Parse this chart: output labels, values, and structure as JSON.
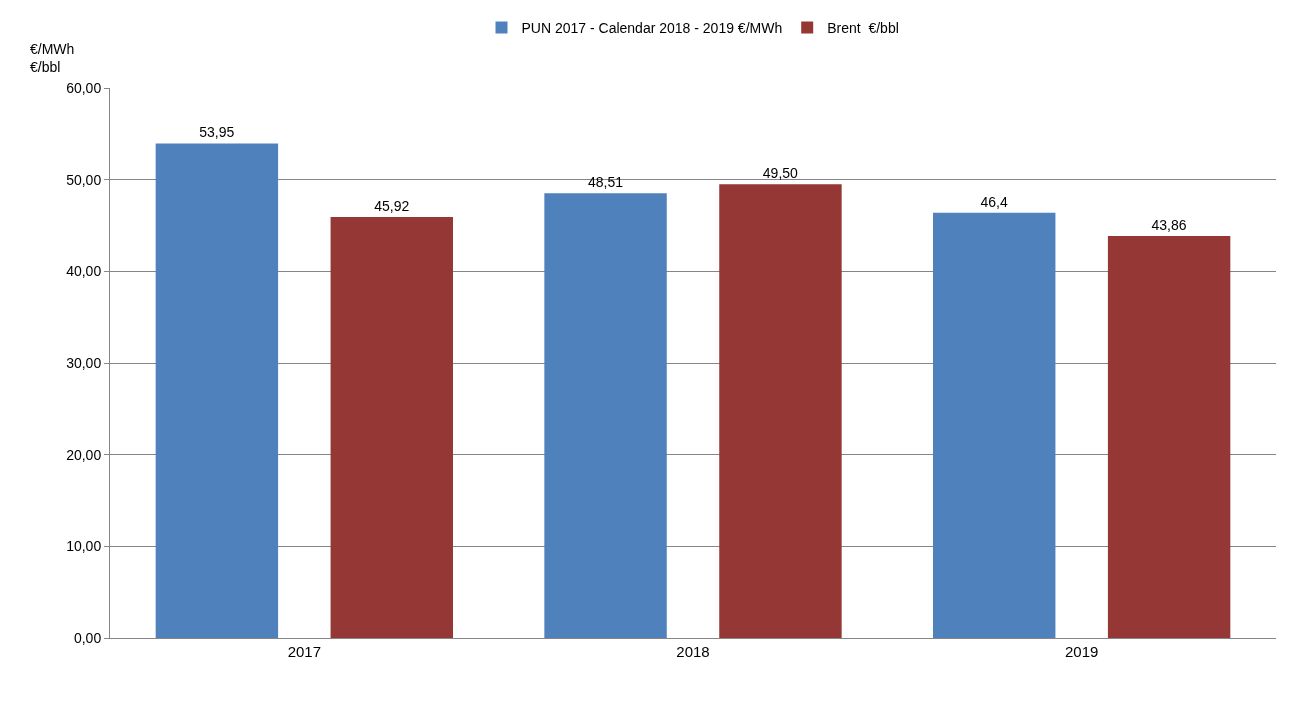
{
  "chart_data": {
    "type": "bar",
    "ylabel": "€/MWh\n€/bbl",
    "categories": [
      "2017",
      "2018",
      "2019"
    ],
    "series": [
      {
        "name": "PUN 2017 - Calendar 2018 - 2019 €/MWh",
        "color": "#4f81bd",
        "values": [
          53.95,
          48.51,
          46.4
        ],
        "value_labels": [
          "53,95",
          "48,51",
          "46,4"
        ]
      },
      {
        "name": "Brent  €/bbl",
        "color": "#953735",
        "values": [
          45.92,
          49.5,
          43.86
        ],
        "value_labels": [
          "45,92",
          "49,50",
          "43,86"
        ]
      }
    ],
    "ylim": [
      0,
      60
    ],
    "yticks": [
      {
        "value": 0,
        "label": "0,00"
      },
      {
        "value": 10,
        "label": "10,00"
      },
      {
        "value": 20,
        "label": "20,00"
      },
      {
        "value": 30,
        "label": "30,00"
      },
      {
        "value": 40,
        "label": "40,00"
      },
      {
        "value": 50,
        "label": "50,00"
      },
      {
        "value": 60,
        "label": "60,00"
      }
    ],
    "grid": "y",
    "legend": "top"
  }
}
